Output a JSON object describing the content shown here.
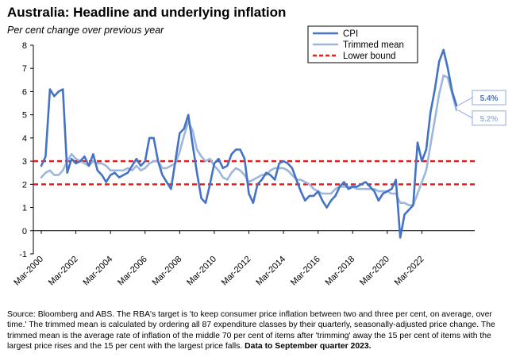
{
  "title": "Australia: Headline and underlying inflation",
  "subtitle": "Per cent change over previous year",
  "source": {
    "text": "Source: Bloomberg and ABS. The RBA's target is 'to keep consumer price inflation between two and three per cent, on average, over time.'  The trimmed mean is calculated by ordering all 87 expenditure classes by their quarterly, seasonally-adjusted price change.  The trimmed mean is  the average rate of inflation of the middle 70 per cent of items after 'trimming' away the 15 per cent of items with the largest price rises and the 15 per cent with the largest price falls.",
    "bold": "Data to September quarter 2023."
  },
  "colors": {
    "cpi": "#4472c4",
    "trimmed": "#9bb7de",
    "bound": "#e0201f",
    "axis": "#000000",
    "grid_label_box": "#8eaadb"
  },
  "chart_data": {
    "type": "line",
    "title": "Australia: Headline and underlying inflation",
    "ylabel": "Per cent change over previous year",
    "ylim": [
      -1,
      8
    ],
    "yticks": [
      -1,
      0,
      1,
      2,
      3,
      4,
      5,
      6,
      7,
      8
    ],
    "xticks": [
      "Mar-2000",
      "Mar-2002",
      "Mar-2004",
      "Mar-2006",
      "Mar-2008",
      "Mar-2010",
      "Mar-2012",
      "Mar-2014",
      "Mar-2016",
      "Mar-2018",
      "Mar-2020",
      "Mar-2022"
    ],
    "x_start": "Mar-2000",
    "x_end": "Sep-2023",
    "legend": [
      "CPI",
      "Trimmed mean",
      "Lower bound"
    ],
    "legend_position": "top-right",
    "end_labels": {
      "cpi": "5.4%",
      "trimmed": "5.2%"
    },
    "series": [
      {
        "name": "CPI",
        "values": [
          2.8,
          3.2,
          6.1,
          5.8,
          6.0,
          6.1,
          2.5,
          3.1,
          2.9,
          3.0,
          3.2,
          2.8,
          3.3,
          2.6,
          2.4,
          2.1,
          2.4,
          2.5,
          2.3,
          2.4,
          2.5,
          2.8,
          3.1,
          2.8,
          3.0,
          4.0,
          4.0,
          3.0,
          2.4,
          2.1,
          1.8,
          3.0,
          4.2,
          4.4,
          5.0,
          3.7,
          2.5,
          1.4,
          1.2,
          2.0,
          2.9,
          3.1,
          2.7,
          2.8,
          3.3,
          3.5,
          3.5,
          3.1,
          1.6,
          1.2,
          2.0,
          2.2,
          2.5,
          2.4,
          2.2,
          2.9,
          3.0,
          2.9,
          2.7,
          2.2,
          1.7,
          1.3,
          1.5,
          1.5,
          1.7,
          1.3,
          1.0,
          1.3,
          1.5,
          1.9,
          2.1,
          1.8,
          1.9,
          1.9,
          2.0,
          2.1,
          1.9,
          1.7,
          1.3,
          1.6,
          1.7,
          1.8,
          2.2,
          -0.3,
          0.7,
          0.9,
          1.1,
          3.8,
          3.0,
          3.5,
          5.1,
          6.1,
          7.3,
          7.8,
          7.0,
          6.0,
          5.4
        ]
      },
      {
        "name": "Trimmed mean",
        "values": [
          2.3,
          2.5,
          2.6,
          2.4,
          2.4,
          2.6,
          3.0,
          3.3,
          3.1,
          3.0,
          2.9,
          2.8,
          3.0,
          2.9,
          2.9,
          2.8,
          2.6,
          2.6,
          2.6,
          2.6,
          2.7,
          2.6,
          2.8,
          2.6,
          2.7,
          2.9,
          3.0,
          3.0,
          2.7,
          2.7,
          2.8,
          2.9,
          3.4,
          4.1,
          4.7,
          4.3,
          3.5,
          3.2,
          3.0,
          3.1,
          2.8,
          2.6,
          2.3,
          2.2,
          2.5,
          2.7,
          2.6,
          2.4,
          2.1,
          2.2,
          2.3,
          2.4,
          2.4,
          2.6,
          2.7,
          2.7,
          2.7,
          2.6,
          2.4,
          2.2,
          2.2,
          2.1,
          2.0,
          1.8,
          1.7,
          1.6,
          1.6,
          1.6,
          1.8,
          1.9,
          1.9,
          1.9,
          1.9,
          1.8,
          1.8,
          1.8,
          1.8,
          1.8,
          1.7,
          1.7,
          1.7,
          1.6,
          1.6,
          1.2,
          1.2,
          1.1,
          1.1,
          1.6,
          2.1,
          2.6,
          3.7,
          4.8,
          5.9,
          6.7,
          6.6,
          5.9,
          5.2
        ]
      },
      {
        "name": "Lower bound",
        "values": [
          2,
          2
        ]
      },
      {
        "name": "Upper bound",
        "values": [
          3,
          3
        ]
      }
    ]
  }
}
